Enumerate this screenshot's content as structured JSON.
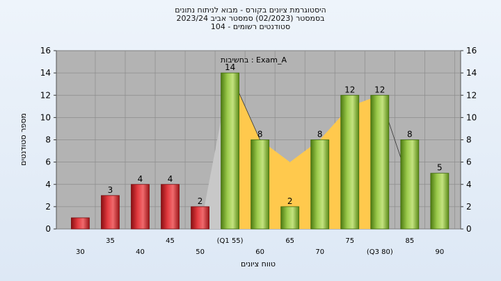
{
  "header": {
    "title_line1": "היסטוגרמת ציונים בקורס - מבוא לניתוח נתונים",
    "title_line2": "בסמסטר  (02/2023)  סמסטר אביב 2023/24",
    "title_line3": "סטודנטים רשומים - 104"
  },
  "chart_data": {
    "type": "bar",
    "ylabel": "מספר סטודנטים",
    "xlabel": "טווח ציונים",
    "annotation": "בחשיבות : Exam_A",
    "ylim": [
      0,
      16
    ],
    "yticks": [
      0,
      2,
      4,
      6,
      8,
      10,
      12,
      14,
      16
    ],
    "grid": true,
    "categories": [
      "30",
      "35",
      "40",
      "45",
      "50",
      "(Q1 55)",
      "60",
      "65",
      "70",
      "75",
      "(Q3 80)",
      "85",
      "90"
    ],
    "values": [
      1,
      3,
      4,
      4,
      2,
      14,
      8,
      2,
      8,
      12,
      12,
      8,
      5
    ],
    "data_labels": [
      "",
      "3",
      "4",
      "4",
      "2",
      "14",
      "8",
      "2",
      "8",
      "12",
      "12",
      "8",
      "5"
    ],
    "bar_colors": [
      "#d9262b",
      "#d9262b",
      "#d9262b",
      "#d9262b",
      "#d9262b",
      "#86b53a",
      "#86b53a",
      "#86b53a",
      "#86b53a",
      "#86b53a",
      "#86b53a",
      "#86b53a",
      "#86b53a"
    ],
    "iqr_area": {
      "x": [
        55,
        60,
        65,
        70,
        75,
        80
      ],
      "y": [
        14,
        8,
        6,
        8,
        11,
        12
      ],
      "color": "#ffc94d"
    },
    "tail_area": {
      "x": [
        50,
        55
      ],
      "y": [
        0,
        14
      ],
      "color": "#c8c8c8"
    }
  }
}
